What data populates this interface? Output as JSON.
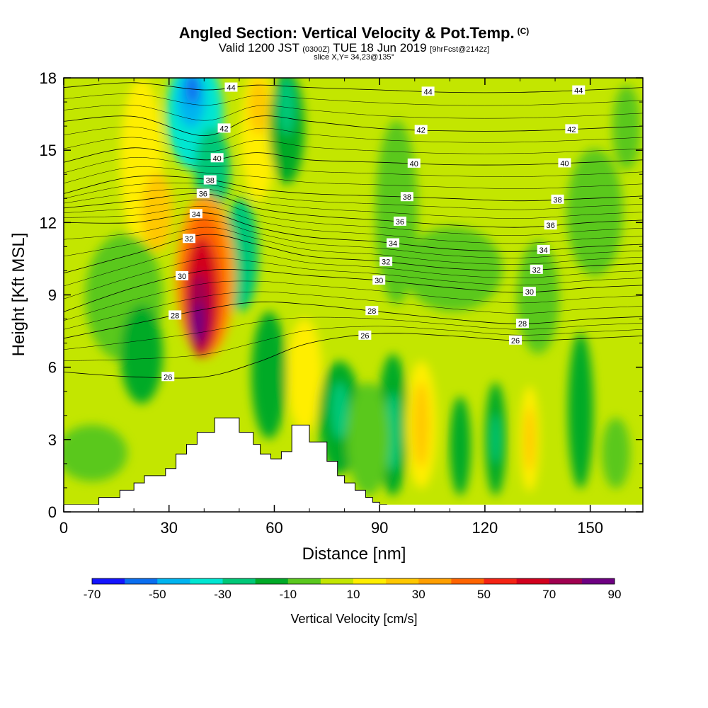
{
  "header": {
    "title": "Angled Section: Vertical Velocity & Pot.Temp.",
    "title_mark": "(C)",
    "valid_prefix": "Valid 1200 JST",
    "valid_utc": "(0300Z)",
    "valid_date": "TUE 18 Jun 2019",
    "valid_fcst": "[9hrFcst@2142z]",
    "slice": "slice X,Y= 34,23@135°"
  },
  "chart_data": {
    "type": "heatmap",
    "xlabel": "Distance [nm]",
    "ylabel": "Height [Kft MSL]",
    "xlim": [
      0,
      165
    ],
    "ylim": [
      0,
      18
    ],
    "x_ticks": [
      0,
      30,
      60,
      90,
      120,
      150
    ],
    "y_ticks": [
      0,
      3,
      6,
      9,
      12,
      15,
      18
    ],
    "colorbar": {
      "label": "Vertical Velocity [cm/s]",
      "tick_labels": [
        "-70",
        "-50",
        "-30",
        "-10",
        "10",
        "30",
        "50",
        "70",
        "90"
      ],
      "levels": [
        -70,
        -60,
        -50,
        -40,
        -30,
        -20,
        -10,
        0,
        10,
        20,
        30,
        40,
        50,
        60,
        70,
        80,
        90
      ],
      "colors": [
        "#1414ff",
        "#0a6ef0",
        "#00b4f0",
        "#00e6d2",
        "#00c878",
        "#00aa28",
        "#5ac81e",
        "#c3e600",
        "#ffee00",
        "#ffc800",
        "#ff9f00",
        "#ff6400",
        "#f52314",
        "#d2001e",
        "#a00050",
        "#6e0082"
      ]
    },
    "theta_contours": [
      {
        "label": "26",
        "x": [
          0,
          20,
          40,
          55,
          70,
          90,
          110,
          130,
          150,
          165
        ],
        "y": [
          5.8,
          5.6,
          5.6,
          6.2,
          7.0,
          7.4,
          7.3,
          7.1,
          7.2,
          7.3
        ]
      },
      {
        "label": "28",
        "x": [
          0,
          20,
          40,
          55,
          70,
          90,
          110,
          130,
          150,
          165
        ],
        "y": [
          7.2,
          7.8,
          8.4,
          8.7,
          8.6,
          8.3,
          8.0,
          7.8,
          8.0,
          8.1
        ]
      },
      {
        "label": "30",
        "x": [
          0,
          20,
          40,
          55,
          70,
          90,
          110,
          130,
          150,
          165
        ],
        "y": [
          8.3,
          9.3,
          10.0,
          10.0,
          9.8,
          9.6,
          9.3,
          9.1,
          9.3,
          9.4
        ]
      },
      {
        "label": "32",
        "x": [
          0,
          20,
          40,
          55,
          70,
          90,
          110,
          130,
          150,
          165
        ],
        "y": [
          9.9,
          10.7,
          11.5,
          11.1,
          10.6,
          10.4,
          10.1,
          10.0,
          10.2,
          10.3
        ]
      },
      {
        "label": "34",
        "x": [
          0,
          20,
          40,
          55,
          70,
          90,
          110,
          130,
          150,
          165
        ],
        "y": [
          12.0,
          12.0,
          12.4,
          11.8,
          11.4,
          11.2,
          10.9,
          10.8,
          11.0,
          11.1
        ]
      },
      {
        "label": "36",
        "x": [
          0,
          20,
          40,
          55,
          70,
          90,
          110,
          130,
          150,
          165
        ],
        "y": [
          12.6,
          12.9,
          13.2,
          12.6,
          12.3,
          12.1,
          11.9,
          11.8,
          12.0,
          12.1
        ]
      },
      {
        "label": "38",
        "x": [
          0,
          20,
          40,
          55,
          70,
          90,
          110,
          130,
          150,
          165
        ],
        "y": [
          13.2,
          13.9,
          13.8,
          13.4,
          13.2,
          13.1,
          13.0,
          12.9,
          13.0,
          13.1
        ]
      },
      {
        "label": "40",
        "x": [
          0,
          20,
          40,
          55,
          70,
          90,
          110,
          130,
          150,
          165
        ],
        "y": [
          14.5,
          15.1,
          14.6,
          14.9,
          14.6,
          14.5,
          14.4,
          14.4,
          14.5,
          14.6
        ]
      },
      {
        "label": "42",
        "x": [
          0,
          20,
          40,
          55,
          70,
          90,
          110,
          130,
          150,
          165
        ],
        "y": [
          16.2,
          16.4,
          15.6,
          16.4,
          16.2,
          15.9,
          15.8,
          15.8,
          15.9,
          16.0
        ]
      },
      {
        "label": "44",
        "x": [
          0,
          20,
          40,
          55,
          70,
          90,
          110,
          130,
          150,
          165
        ],
        "y": [
          17.6,
          17.8,
          17.5,
          17.7,
          17.6,
          17.5,
          17.4,
          17.4,
          17.5,
          17.6
        ]
      }
    ],
    "terrain": {
      "x": [
        0,
        10,
        16,
        20,
        23,
        29,
        32,
        35,
        38,
        43,
        50,
        54,
        56,
        59,
        62,
        65,
        70,
        75,
        78,
        80,
        83,
        86,
        88,
        90
      ],
      "y": [
        0.3,
        0.6,
        0.9,
        1.2,
        1.5,
        1.8,
        2.4,
        2.8,
        3.3,
        3.9,
        3.3,
        2.8,
        2.4,
        2.2,
        2.5,
        3.6,
        2.9,
        2.1,
        1.5,
        1.2,
        0.9,
        0.6,
        0.4,
        0.3
      ]
    }
  }
}
